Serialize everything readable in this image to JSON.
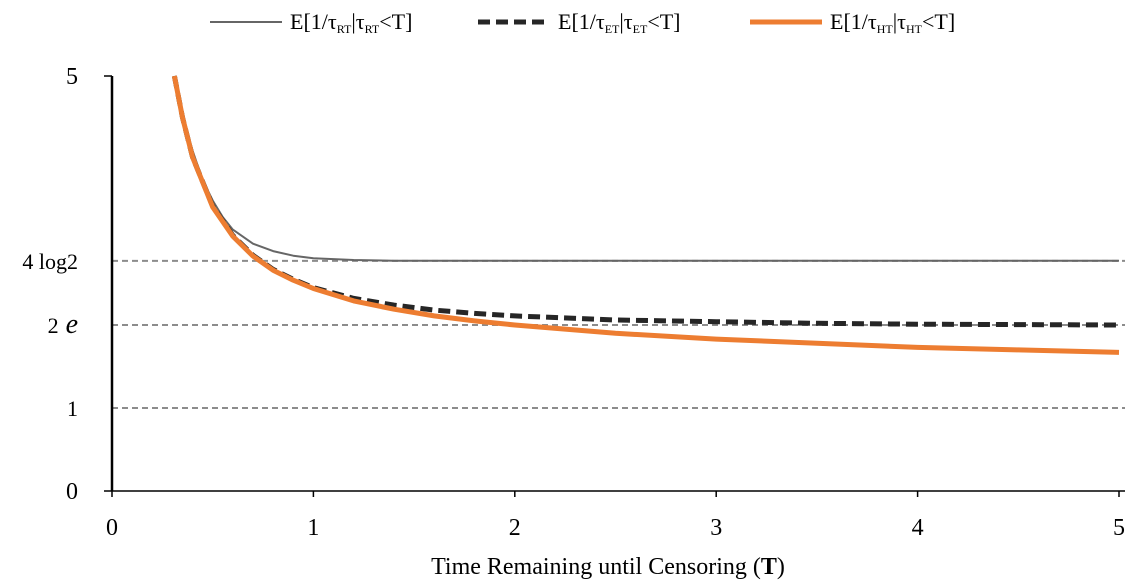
{
  "chart_data": {
    "type": "line",
    "title": "",
    "xlabel": {
      "text": "Time Remaining until Censoring (",
      "bold": "T",
      "close": ")"
    },
    "ylabel": "",
    "xlim": [
      0,
      5
    ],
    "ylim": [
      0,
      5
    ],
    "x_ticks": [
      "0",
      "1",
      "2",
      "3",
      "4",
      "5"
    ],
    "y_ticks": [
      {
        "value": 0,
        "label": "0"
      },
      {
        "value": 5,
        "label": "5"
      }
    ],
    "reference_lines": [
      {
        "value": 2.7726,
        "label_prefix": "4 log2",
        "label_italic": ""
      },
      {
        "value": 2.0,
        "label_prefix": "2",
        "label_italic": "e"
      },
      {
        "value": 1.0,
        "label_prefix": "1",
        "label_italic": ""
      }
    ],
    "legend_position": "top",
    "series": [
      {
        "name": "E[1/τRT|τRT<T]",
        "legend": {
          "pre": "E[1/τ",
          "sub1": "RT",
          "mid": "|τ",
          "sub2": "RT",
          "post": "<T]"
        },
        "color": "#666666",
        "style": "solid-thin",
        "x": [
          0.31,
          0.35,
          0.4,
          0.45,
          0.5,
          0.55,
          0.6,
          0.7,
          0.8,
          0.9,
          1.0,
          1.2,
          1.4,
          1.6,
          2.0,
          3.0,
          4.0,
          5.0
        ],
        "y": [
          5.0,
          4.55,
          4.1,
          3.75,
          3.5,
          3.3,
          3.15,
          2.98,
          2.89,
          2.835,
          2.805,
          2.783,
          2.775,
          2.773,
          2.773,
          2.773,
          2.773,
          2.773
        ]
      },
      {
        "name": "E[1/τET|τET<T]",
        "legend": {
          "pre": "E[1/τ",
          "sub1": "ET",
          "mid": "|τ",
          "sub2": "ET",
          "post": "<T]"
        },
        "color": "#262626",
        "style": "dashed-thick",
        "x": [
          0.31,
          0.35,
          0.4,
          0.5,
          0.6,
          0.7,
          0.8,
          0.9,
          1.0,
          1.2,
          1.4,
          1.6,
          1.8,
          2.0,
          2.5,
          3.0,
          3.5,
          4.0,
          4.5,
          5.0
        ],
        "y": [
          5.0,
          4.5,
          4.02,
          3.43,
          3.08,
          2.84,
          2.67,
          2.55,
          2.45,
          2.32,
          2.24,
          2.18,
          2.14,
          2.11,
          2.06,
          2.04,
          2.02,
          2.01,
          2.005,
          2.0
        ]
      },
      {
        "name": "E[1/τHT|τHT<T]",
        "legend": {
          "pre": "E[1/τ",
          "sub1": "HT",
          "mid": "|τ",
          "sub2": "HT",
          "post": "<T]"
        },
        "color": "#ED7D31",
        "style": "solid-thick",
        "x": [
          0.31,
          0.35,
          0.4,
          0.5,
          0.6,
          0.7,
          0.8,
          0.9,
          1.0,
          1.2,
          1.4,
          1.6,
          1.8,
          2.0,
          2.5,
          3.0,
          3.5,
          4.0,
          4.5,
          5.0
        ],
        "y": [
          5.0,
          4.5,
          4.02,
          3.42,
          3.07,
          2.83,
          2.66,
          2.54,
          2.44,
          2.29,
          2.19,
          2.11,
          2.05,
          2.0,
          1.9,
          1.83,
          1.78,
          1.73,
          1.7,
          1.67
        ]
      }
    ]
  }
}
